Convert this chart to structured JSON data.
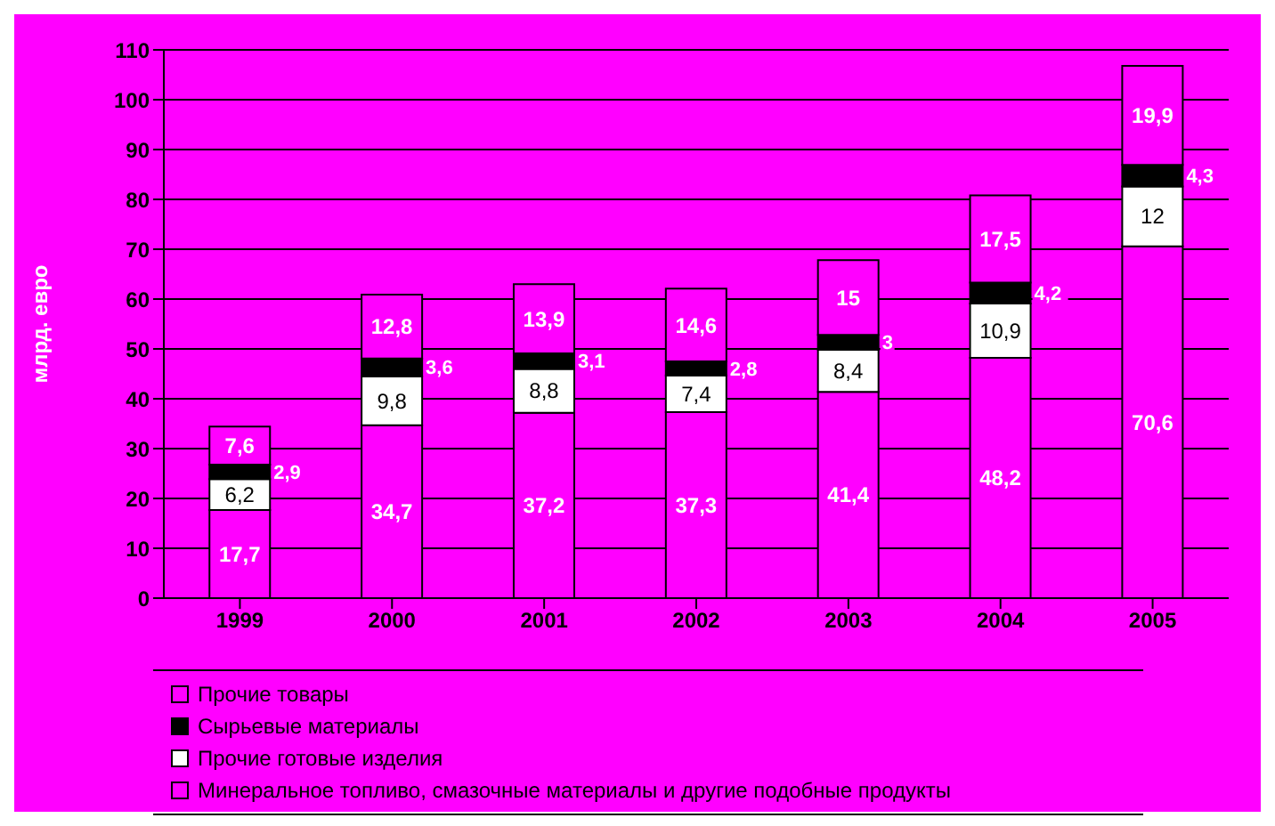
{
  "chart_data": {
    "type": "bar",
    "stacked": true,
    "ylabel": "млрд. евро",
    "categories": [
      "1999",
      "2000",
      "2001",
      "2002",
      "2003",
      "2004",
      "2005"
    ],
    "series": [
      {
        "name": "Минеральное топливо, смазочные материалы и другие подобные продукты",
        "color": "#ff00ff",
        "values": [
          17.7,
          34.7,
          37.2,
          37.3,
          41.4,
          48.2,
          70.6
        ],
        "value_labels": [
          "17,7",
          "34,7",
          "37,2",
          "37,3",
          "41,4",
          "48,2",
          "70,6"
        ]
      },
      {
        "name": "Прочие готовые изделия",
        "color": "#ffffff",
        "values": [
          6.2,
          9.8,
          8.8,
          7.4,
          8.4,
          10.9,
          12
        ],
        "value_labels": [
          "6,2",
          "9,8",
          "8,8",
          "7,4",
          "8,4",
          "10,9",
          "12"
        ]
      },
      {
        "name": "Сырьевые материалы",
        "color": "#000000",
        "values": [
          2.9,
          3.6,
          3.1,
          2.8,
          3,
          4.2,
          4.3
        ],
        "value_labels": [
          "2,9",
          "3,6",
          "3,1",
          "2,8",
          "3",
          "4,2",
          "4,3"
        ]
      },
      {
        "name": "Прочие товары",
        "color": "#ff00ff",
        "values": [
          7.6,
          12.8,
          13.9,
          14.6,
          15,
          17.5,
          19.9
        ],
        "value_labels": [
          "7,6",
          "12,8",
          "13,9",
          "14,6",
          "15",
          "17,5",
          "19,9"
        ]
      }
    ],
    "ylim": [
      0,
      110
    ],
    "yticks": [
      0,
      10,
      20,
      30,
      40,
      50,
      60,
      70,
      80,
      90,
      100,
      110
    ],
    "grid": "y",
    "legend": "bottom"
  }
}
